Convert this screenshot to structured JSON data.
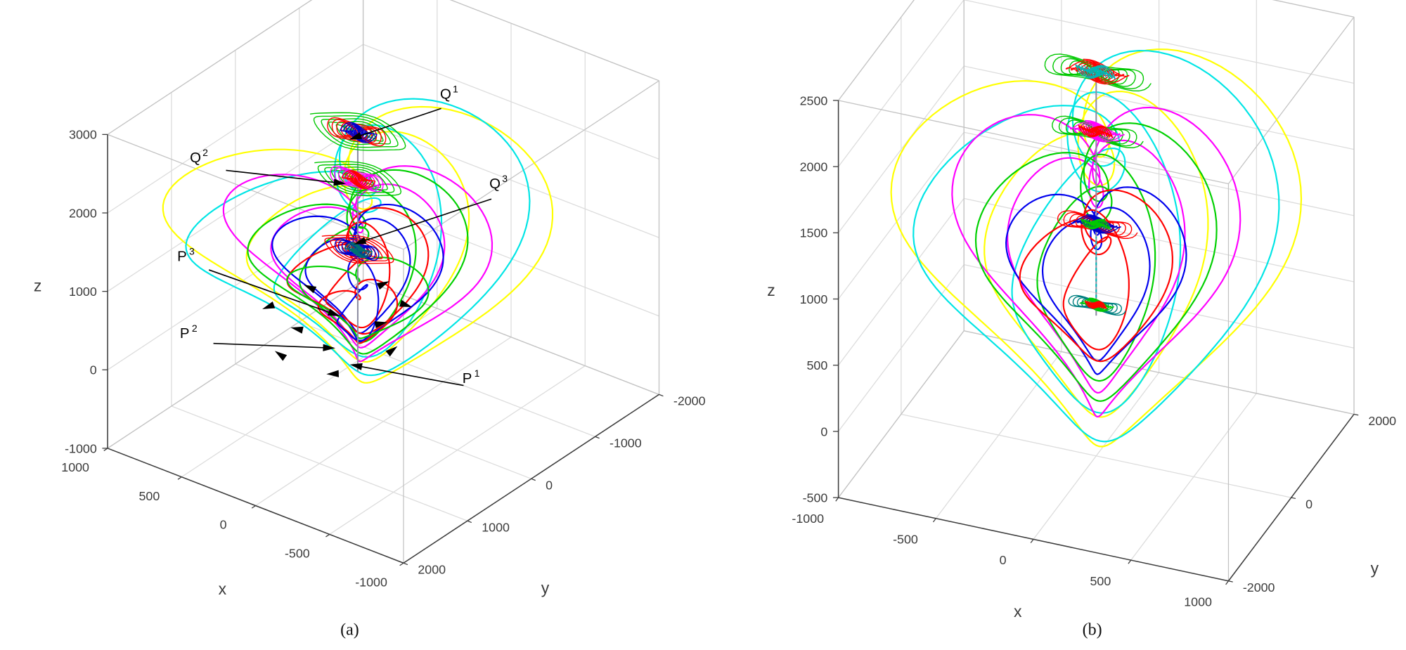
{
  "figure": {
    "background": "#ffffff"
  },
  "style": {
    "grid_color": "#dcdcdc",
    "box_color": "#c3c3c3",
    "axis_color": "#3c3c3c",
    "tick_label_color": "#3c3c3c",
    "axis_label_color": "#3c3c3c",
    "annotation_color": "#000000",
    "center_line_color": "#8c8ca0"
  },
  "chart_data": [
    {
      "id": "a",
      "type": "line",
      "subtype": "3d-phase-portrait",
      "caption": "(a)",
      "xlabel": "x",
      "ylabel": "y",
      "zlabel": "z",
      "xlim": [
        -1000,
        1000
      ],
      "ylim": [
        -2000,
        2000
      ],
      "zlim": [
        -1000,
        3000
      ],
      "xticks": [
        -1000,
        -500,
        0,
        500,
        1000
      ],
      "yticks": [
        -2000,
        -1000,
        0,
        1000,
        2000
      ],
      "zticks": [
        -1000,
        0,
        1000,
        2000,
        3000
      ],
      "grid": true,
      "proj": {
        "front": {
          "x": -1000,
          "y": 2000,
          "screen": [
            450,
            628
          ]
        },
        "left": {
          "x": 1000,
          "screen": [
            120,
            500
          ]
        },
        "right": {
          "y": -2000,
          "screen": [
            735,
            440
          ]
        },
        "zmin": -1000,
        "zmax": 3000,
        "zlen": 350
      },
      "label_pos": {
        "x": [
          248,
          663
        ],
        "y": [
          608,
          662
        ],
        "z": [
          42,
          325
        ]
      },
      "tick_style": {
        "x": {
          "off": [
            -36,
            26
          ],
          "anchor": "middle"
        },
        "y": {
          "off": [
            16,
            12
          ],
          "anchor": "start"
        },
        "z": {
          "off": [
            -12,
            5
          ],
          "anchor": "end"
        }
      },
      "center": {
        "x": 0,
        "y": 400
      },
      "axis_line": {
        "z1": -150,
        "z2": 2950
      },
      "loops": [
        {
          "name": "trajectory-yellow-outer",
          "color": "#ffff00",
          "A": 1390,
          "B": 1882,
          "zc": 1632,
          "phi": 54
        },
        {
          "name": "trajectory-yellow-inner",
          "color": "#ffff00",
          "A": 1040,
          "B": 1500,
          "zc": 1500,
          "phi": 74
        },
        {
          "name": "trajectory-cyan-outer",
          "color": "#00e5e5",
          "A": 1500,
          "B": 1765,
          "zc": 1615,
          "phi": 70
        },
        {
          "name": "trajectory-cyan-inner",
          "color": "#00e5e5",
          "A": 1130,
          "B": 1420,
          "zc": 1480,
          "phi": 90
        },
        {
          "name": "trajectory-magenta-outer",
          "color": "#ff00ff",
          "A": 860,
          "B": 1412,
          "zc": 1412,
          "phi": 38
        },
        {
          "name": "trajectory-magenta-inner",
          "color": "#ff00ff",
          "A": 645,
          "B": 1130,
          "zc": 1300,
          "phi": 58
        },
        {
          "name": "trajectory-green-outer",
          "color": "#00d000",
          "A": 857,
          "B": 1235,
          "zc": 1335,
          "phi": 62
        },
        {
          "name": "trajectory-green-inner",
          "color": "#00d000",
          "A": 640,
          "B": 990,
          "zc": 1230,
          "phi": 82
        },
        {
          "name": "trajectory-blue-outer",
          "color": "#0000ee",
          "A": 572,
          "B": 971,
          "zc": 1220,
          "phi": 46
        },
        {
          "name": "trajectory-blue-inner",
          "color": "#0000ee",
          "A": 430,
          "B": 780,
          "zc": 1130,
          "phi": 66
        },
        {
          "name": "trajectory-red-outer",
          "color": "#ff0000",
          "A": 672,
          "B": 794,
          "zc": 1144,
          "phi": 75
        },
        {
          "name": "trajectory-red-inner",
          "color": "#ff0000",
          "A": 500,
          "B": 640,
          "zc": 1060,
          "phi": 95
        },
        {
          "name": "trajectory-red-small",
          "color": "#ff0000",
          "A": 300,
          "B": 430,
          "zc": 650,
          "phi": 60
        },
        {
          "name": "trajectory-blue-small",
          "color": "#0000ee",
          "A": 380,
          "B": 500,
          "zc": 750,
          "phi": 100
        },
        {
          "name": "trajectory-green-small",
          "color": "#00d000",
          "A": 470,
          "B": 560,
          "zc": 850,
          "phi": 45
        }
      ],
      "clusters": [
        {
          "name": "equilibrium-cluster-Q1",
          "z": 2900,
          "r": 320,
          "colors": [
            "#00c800",
            "#ff0000",
            "#0000cd"
          ]
        },
        {
          "name": "equilibrium-cluster-Q2",
          "z": 2300,
          "r": 290,
          "colors": [
            "#00c800",
            "#ff00ff",
            "#ff0000"
          ]
        },
        {
          "name": "equilibrium-cluster-Q3",
          "z": 1400,
          "r": 240,
          "colors": [
            "#ff0000",
            "#0000cd",
            "#007070"
          ]
        }
      ],
      "annotations": [
        {
          "base": "Q",
          "sup": "1",
          "label": [
            497,
            110
          ],
          "from": [
            492,
            121
          ],
          "to": [
            397,
            153
          ]
        },
        {
          "base": "Q",
          "sup": "2",
          "label": [
            218,
            181
          ],
          "from": [
            252,
            190
          ],
          "to": [
            378,
            204
          ]
        },
        {
          "base": "Q",
          "sup": "3",
          "label": [
            552,
            210
          ],
          "from": [
            548,
            222
          ],
          "to": [
            402,
            270
          ]
        },
        {
          "base": "P",
          "sup": "3",
          "label": [
            203,
            291
          ],
          "from": [
            233,
            301
          ],
          "to": [
            372,
            350
          ]
        },
        {
          "base": "P",
          "sup": "2",
          "label": [
            206,
            377
          ],
          "from": [
            238,
            383
          ],
          "to": [
            366,
            388
          ]
        },
        {
          "base": "P",
          "sup": "1",
          "label": [
            521,
            427
          ],
          "from": [
            517,
            430
          ],
          "to": [
            398,
            408
          ]
        }
      ],
      "flow_arrows": [
        {
          "p": [
            346,
            321
          ],
          "a": 205
        },
        {
          "p": [
            427,
            317
          ],
          "a": -25
        },
        {
          "p": [
            332,
            367
          ],
          "a": 192
        },
        {
          "p": [
            424,
            361
          ],
          "a": -12
        },
        {
          "p": [
            313,
            396
          ],
          "a": 215
        },
        {
          "p": [
            437,
            391
          ],
          "a": -38
        },
        {
          "p": [
            372,
            417
          ],
          "a": 178
        },
        {
          "p": [
            300,
            342
          ],
          "a": 160
        },
        {
          "p": [
            452,
            340
          ],
          "a": 18
        }
      ]
    },
    {
      "id": "b",
      "type": "line",
      "subtype": "3d-phase-portrait",
      "caption": "(b)",
      "xlabel": "x",
      "ylabel": "y",
      "zlabel": "z",
      "xlim": [
        -1000,
        1000
      ],
      "ylim": [
        -2000,
        2000
      ],
      "zlim": [
        -500,
        2500
      ],
      "xticks": [
        -1000,
        -500,
        0,
        500,
        1000
      ],
      "yticks": [
        -2000,
        0,
        2000
      ],
      "zticks": [
        -500,
        0,
        500,
        1000,
        1500,
        2000,
        2500
      ],
      "grid": true,
      "proj": {
        "front": {
          "x": 1000,
          "y": -2000,
          "screen": [
            1370,
            648
          ]
        },
        "left": {
          "x": -1000,
          "screen": [
            935,
            555
          ]
        },
        "right": {
          "y": 2000,
          "screen": [
            1510,
            462
          ]
        },
        "zmin": -500,
        "zmax": 2500,
        "zlen": 443
      },
      "label_pos": {
        "x": [
          1135,
          688
        ],
        "y": [
          1533,
          640
        ],
        "z": [
          860,
          330
        ]
      },
      "tick_style": {
        "x": {
          "off": [
            -34,
            28
          ],
          "anchor": "middle"
        },
        "y": {
          "off": [
            16,
            12
          ],
          "anchor": "start"
        },
        "z": {
          "off": [
            -12,
            5
          ],
          "anchor": "end"
        }
      },
      "center": {
        "x": 0,
        "y": 0
      },
      "axis_line": {
        "z1": 560,
        "z2": 2450
      },
      "dotted": {
        "z1": 700,
        "z2": 1150,
        "color": "#00b8b8"
      },
      "loops": [
        {
          "name": "trajectory-yellow-outer",
          "color": "#ffff00",
          "A": 1260,
          "B": 1688,
          "zc": 1268,
          "phi": 45
        },
        {
          "name": "trajectory-yellow-inner",
          "color": "#ffff00",
          "A": 945,
          "B": 1350,
          "zc": 1150,
          "phi": 65
        },
        {
          "name": "trajectory-cyan-outer",
          "color": "#00e5e5",
          "A": 1400,
          "B": 1606,
          "zc": 1226,
          "phi": 60
        },
        {
          "name": "trajectory-cyan-inner",
          "color": "#00e5e5",
          "A": 1050,
          "B": 1290,
          "zc": 1120,
          "phi": 80
        },
        {
          "name": "trajectory-magenta-outer",
          "color": "#ff00ff",
          "A": 777,
          "B": 1353,
          "zc": 1153,
          "phi": 30
        },
        {
          "name": "trajectory-magenta-inner",
          "color": "#ff00ff",
          "A": 580,
          "B": 1080,
          "zc": 1060,
          "phi": 50
        },
        {
          "name": "trajectory-green-outer",
          "color": "#00d000",
          "A": 847,
          "B": 1165,
          "zc": 1085,
          "phi": 55
        },
        {
          "name": "trajectory-green-inner",
          "color": "#00d000",
          "A": 635,
          "B": 930,
          "zc": 1000,
          "phi": 75
        },
        {
          "name": "trajectory-blue-outer",
          "color": "#0000ee",
          "A": 503,
          "B": 812,
          "zc": 932,
          "phi": 35
        },
        {
          "name": "trajectory-blue-inner",
          "color": "#0000ee",
          "A": 377,
          "B": 650,
          "zc": 870,
          "phi": 55
        },
        {
          "name": "trajectory-red-outer",
          "color": "#ff0000",
          "A": 645,
          "B": 694,
          "zc": 914,
          "phi": 65
        },
        {
          "name": "trajectory-red-inner",
          "color": "#ff0000",
          "A": 480,
          "B": 555,
          "zc": 860,
          "phi": 85
        }
      ],
      "clusters": [
        {
          "name": "equilibrium-cluster-top",
          "z": 2400,
          "r": 280,
          "colors": [
            "#00c800",
            "#ff0000",
            "#00b8b8"
          ]
        },
        {
          "name": "equilibrium-cluster-second",
          "z": 1950,
          "r": 240,
          "colors": [
            "#00c800",
            "#ff00ff",
            "#ff0000"
          ]
        },
        {
          "name": "equilibrium-cluster-third",
          "z": 1250,
          "r": 210,
          "colors": [
            "#ff0000",
            "#0000cd",
            "#00c800"
          ]
        },
        {
          "name": "equilibrium-cluster-blob",
          "z": 640,
          "r": 150,
          "colors": [
            "#008080",
            "#00c800",
            "#ff0000"
          ]
        }
      ],
      "annotations": [],
      "flow_arrows": []
    }
  ]
}
